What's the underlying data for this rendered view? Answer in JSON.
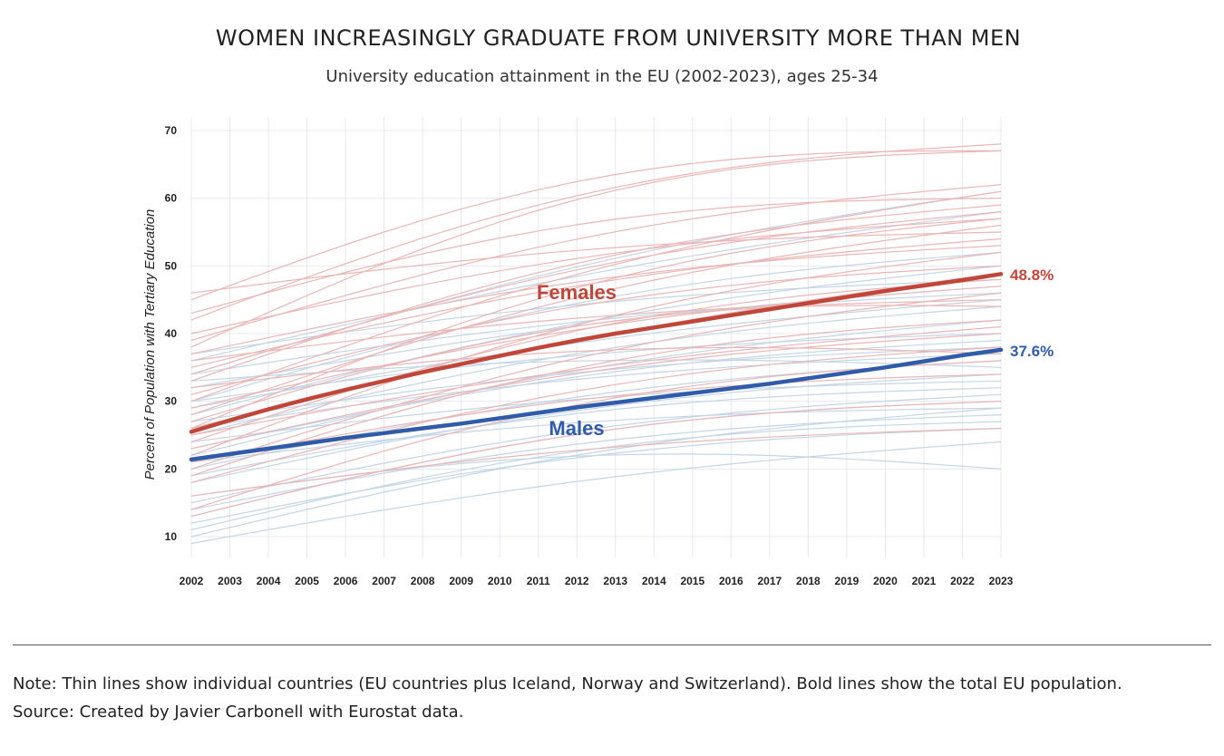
{
  "header": {
    "title": "WOMEN INCREASINGLY GRADUATE FROM UNIVERSITY MORE THAN MEN",
    "subtitle": "University education attainment in the EU (2002-2023), ages 25-34"
  },
  "footer": {
    "note": "Note: Thin lines show individual countries (EU countries plus Iceland, Norway and Switzerland). Bold lines show the total EU population.",
    "source": "Source: Created by Javier Carbonell with Eurostat data."
  },
  "chart_data": {
    "type": "line",
    "title": "WOMEN INCREASINGLY GRADUATE FROM UNIVERSITY MORE THAN MEN",
    "subtitle": "University education attainment in the EU (2002-2023), ages 25-34",
    "xlabel": "",
    "ylabel": "Percent of Population with Tertiary Education",
    "x": [
      2002,
      2003,
      2004,
      2005,
      2006,
      2007,
      2008,
      2009,
      2010,
      2011,
      2012,
      2013,
      2014,
      2015,
      2016,
      2017,
      2018,
      2019,
      2020,
      2021,
      2022,
      2023
    ],
    "xlim": [
      2002,
      2023
    ],
    "ylim": [
      8,
      72
    ],
    "yticks": [
      10,
      20,
      30,
      40,
      50,
      60,
      70
    ],
    "grid": true,
    "legend": "none",
    "colors": {
      "female": "#c0463a",
      "male": "#2f5ba8",
      "female_light": "#eab6b6",
      "male_light": "#c4d5e6",
      "grid": "#e6e8ee"
    },
    "series": [
      {
        "name": "Females",
        "group": "female",
        "total": true,
        "end_label": "48.8%",
        "values": [
          25.5,
          27.2,
          28.8,
          30.3,
          31.7,
          33.0,
          34.3,
          35.5,
          36.7,
          37.9,
          39.0,
          40.0,
          40.9,
          41.8,
          42.7,
          43.6,
          44.5,
          45.4,
          46.3,
          47.1,
          47.9,
          48.8
        ]
      },
      {
        "name": "Males",
        "group": "male",
        "total": true,
        "end_label": "37.6%",
        "values": [
          21.4,
          22.2,
          23.0,
          23.8,
          24.6,
          25.3,
          26.0,
          26.7,
          27.5,
          28.3,
          29.1,
          29.8,
          30.5,
          31.2,
          31.9,
          32.6,
          33.4,
          34.2,
          35.0,
          35.9,
          36.8,
          37.6
        ]
      }
    ],
    "country_series": {
      "female": [
        {
          "start": 38,
          "end": 67,
          "bow": 8
        },
        {
          "start": 45,
          "end": 67,
          "bow": 7
        },
        {
          "start": 42,
          "end": 68,
          "bow": 6
        },
        {
          "start": 30,
          "end": 61,
          "bow": 4
        },
        {
          "start": 33,
          "end": 59,
          "bow": 5
        },
        {
          "start": 26,
          "end": 57,
          "bow": 6
        },
        {
          "start": 28,
          "end": 56,
          "bow": 4
        },
        {
          "start": 40,
          "end": 57,
          "bow": 3
        },
        {
          "start": 46,
          "end": 55,
          "bow": 2
        },
        {
          "start": 35,
          "end": 54,
          "bow": 3
        },
        {
          "start": 22,
          "end": 52,
          "bow": 5
        },
        {
          "start": 31,
          "end": 50,
          "bow": 4
        },
        {
          "start": 24,
          "end": 48,
          "bow": 5
        },
        {
          "start": 29,
          "end": 47,
          "bow": 3
        },
        {
          "start": 36,
          "end": 45,
          "bow": 2
        },
        {
          "start": 20,
          "end": 46,
          "bow": 4
        },
        {
          "start": 27,
          "end": 44,
          "bow": 6
        },
        {
          "start": 19,
          "end": 42,
          "bow": 5
        },
        {
          "start": 23,
          "end": 40,
          "bow": 3
        },
        {
          "start": 18,
          "end": 38,
          "bow": 4
        },
        {
          "start": 32,
          "end": 37,
          "bow": 3
        },
        {
          "start": 25,
          "end": 41,
          "bow": 2
        },
        {
          "start": 14,
          "end": 36,
          "bow": 5
        },
        {
          "start": 21,
          "end": 34,
          "bow": 3
        },
        {
          "start": 13,
          "end": 30,
          "bow": 4
        },
        {
          "start": 16,
          "end": 26,
          "bow": 2
        },
        {
          "start": 34,
          "end": 58,
          "bow": 4
        },
        {
          "start": 37,
          "end": 53,
          "bow": 3
        },
        {
          "start": 43,
          "end": 60,
          "bow": 5
        },
        {
          "start": 26,
          "end": 49,
          "bow": 2
        },
        {
          "start": 39,
          "end": 62,
          "bow": 4
        }
      ],
      "male": [
        {
          "start": 34,
          "end": 61,
          "bow": 3
        },
        {
          "start": 36,
          "end": 58,
          "bow": 2
        },
        {
          "start": 30,
          "end": 52,
          "bow": 4
        },
        {
          "start": 28,
          "end": 50,
          "bow": 3
        },
        {
          "start": 32,
          "end": 47,
          "bow": 2
        },
        {
          "start": 34,
          "end": 46,
          "bow": 2
        },
        {
          "start": 25,
          "end": 44,
          "bow": 3
        },
        {
          "start": 22,
          "end": 42,
          "bow": 3
        },
        {
          "start": 30,
          "end": 40,
          "bow": 2
        },
        {
          "start": 27,
          "end": 38,
          "bow": 2
        },
        {
          "start": 20,
          "end": 36,
          "bow": 3
        },
        {
          "start": 33,
          "end": 35,
          "bow": 2
        },
        {
          "start": 18,
          "end": 34,
          "bow": 3
        },
        {
          "start": 24,
          "end": 33,
          "bow": 2
        },
        {
          "start": 15,
          "end": 31,
          "bow": 3
        },
        {
          "start": 13,
          "end": 30,
          "bow": 4
        },
        {
          "start": 21,
          "end": 29,
          "bow": 2
        },
        {
          "start": 14,
          "end": 28,
          "bow": 3
        },
        {
          "start": 11,
          "end": 27,
          "bow": 4
        },
        {
          "start": 12,
          "end": 26,
          "bow": 3
        },
        {
          "start": 9,
          "end": 24,
          "bow": 2
        },
        {
          "start": 16,
          "end": 20,
          "bow": 4
        },
        {
          "start": 10,
          "end": 29,
          "bow": 3
        },
        {
          "start": 29,
          "end": 45,
          "bow": 2
        },
        {
          "start": 37,
          "end": 48,
          "bow": 2
        },
        {
          "start": 23,
          "end": 39,
          "bow": 3
        },
        {
          "start": 26,
          "end": 37,
          "bow": 2
        },
        {
          "start": 19,
          "end": 32,
          "bow": 3
        }
      ]
    }
  }
}
